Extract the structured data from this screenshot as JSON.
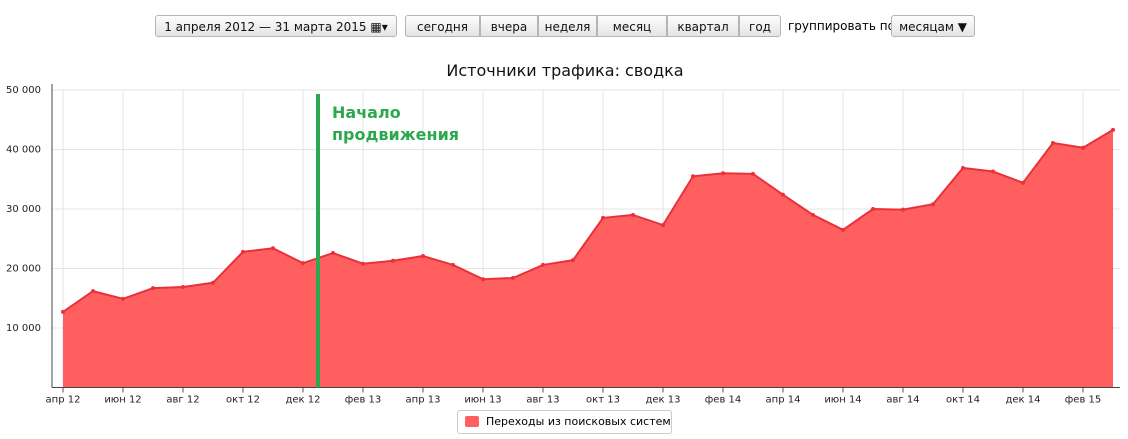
{
  "toolbar": {
    "date_range": "1 апреля 2012 — 31 марта 2015",
    "buttons": [
      "сегодня",
      "вчера",
      "неделя",
      "месяц",
      "квартал",
      "год"
    ],
    "group_label": "группировать по",
    "group_value": "месяцам"
  },
  "chart_data": {
    "type": "area",
    "title": "Источники трафика: сводка",
    "categories": [
      "апр 12",
      null,
      "июн 12",
      null,
      "авг 12",
      null,
      "окт 12",
      null,
      "дек 12",
      null,
      "фев 13",
      null,
      "апр 13",
      null,
      "июн 13",
      null,
      "авг 13",
      null,
      "окт 13",
      null,
      "дек 13",
      null,
      "фев 14",
      null,
      "апр 14",
      null,
      "июн 14",
      null,
      "авг 14",
      null,
      "окт 14",
      null,
      "дек 14",
      null,
      "фев 15",
      null
    ],
    "series": [
      {
        "name": "Переходы из поисковых систем",
        "color": "#ff5f5f",
        "line_color": "#e8323a",
        "values": [
          12700,
          16200,
          14900,
          16700,
          16900,
          17600,
          22800,
          23400,
          20900,
          22600,
          20800,
          21300,
          22100,
          20600,
          18200,
          18400,
          20600,
          21400,
          28500,
          29000,
          27300,
          35500,
          36000,
          35900,
          32400,
          29000,
          26500,
          30000,
          29900,
          30800,
          36900,
          36300,
          34400,
          41100,
          40300,
          43300
        ]
      }
    ],
    "ylim": [
      0,
      50000
    ],
    "yticks": [
      {
        "value": 10000,
        "label": "10 000"
      },
      {
        "value": 20000,
        "label": "20 000"
      },
      {
        "value": 30000,
        "label": "30 000"
      },
      {
        "value": 40000,
        "label": "40 000"
      },
      {
        "value": 50000,
        "label": "50 000"
      }
    ],
    "grid": true,
    "annotation": {
      "lines": [
        "Начало",
        "продвижения"
      ],
      "color": "#2ca94f"
    }
  }
}
